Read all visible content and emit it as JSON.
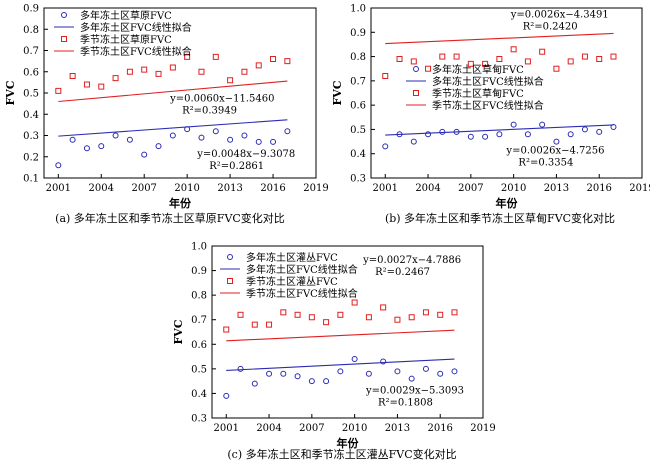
{
  "chart_data": [
    {
      "type": "scatter",
      "caption": "(a) 多年冻土区和季节冻土区草原FVC变化对比",
      "xlabel": "年份",
      "ylabel": "FVC",
      "xlim": [
        2000,
        2019
      ],
      "ylim": [
        0.1,
        0.9
      ],
      "xticks": [
        2001,
        2004,
        2007,
        2010,
        2013,
        2016,
        2019
      ],
      "yticks": [
        0.1,
        0.2,
        0.3,
        0.4,
        0.5,
        0.6,
        0.7,
        0.8,
        0.9
      ],
      "grid": false,
      "legend_position": "top-left",
      "series": [
        {
          "name": "多年冻土区草原FVC",
          "kind": "points",
          "marker": "circle",
          "color": "#2b2bb3",
          "x": [
            2001,
            2002,
            2003,
            2004,
            2005,
            2006,
            2007,
            2008,
            2009,
            2010,
            2011,
            2012,
            2013,
            2014,
            2015,
            2016,
            2017
          ],
          "y": [
            0.16,
            0.28,
            0.24,
            0.25,
            0.3,
            0.28,
            0.21,
            0.25,
            0.3,
            0.33,
            0.29,
            0.32,
            0.28,
            0.3,
            0.27,
            0.27,
            0.32
          ]
        },
        {
          "name": "多年冻土区FVC线性拟合",
          "kind": "line",
          "color": "#2b2bb3",
          "slope": 0.0048,
          "intercept": -9.3078,
          "x_range": [
            2001,
            2017
          ]
        },
        {
          "name": "季节冻土区草原FVC",
          "kind": "points",
          "marker": "square",
          "color": "#e02020",
          "x": [
            2001,
            2002,
            2003,
            2004,
            2005,
            2006,
            2007,
            2008,
            2009,
            2010,
            2011,
            2012,
            2013,
            2014,
            2015,
            2016,
            2017
          ],
          "y": [
            0.51,
            0.58,
            0.54,
            0.53,
            0.57,
            0.6,
            0.61,
            0.59,
            0.62,
            0.67,
            0.6,
            0.67,
            0.56,
            0.6,
            0.63,
            0.66,
            0.65
          ]
        },
        {
          "name": "季节冻土区FVC线性拟合",
          "kind": "line",
          "color": "#e02020",
          "slope": 0.006,
          "intercept": -11.546,
          "x_range": [
            2001,
            2017
          ]
        }
      ],
      "annotations": [
        {
          "eq": "y=0.0060x−11.5460",
          "r2": "R²=0.3949",
          "near": [
            2011.6,
            0.46
          ]
        },
        {
          "eq": "y=0.0048x−9.3078",
          "r2": "R²=0.2861",
          "near": [
            2013.5,
            0.2
          ]
        }
      ]
    },
    {
      "type": "scatter",
      "caption": "(b) 多年冻土区和季节冻土区草甸FVC变化对比",
      "xlabel": "年份",
      "ylabel": "FVC",
      "xlim": [
        2000,
        2019
      ],
      "ylim": [
        0.3,
        1.0
      ],
      "xticks": [
        2001,
        2004,
        2007,
        2010,
        2013,
        2016,
        2019
      ],
      "yticks": [
        0.3,
        0.4,
        0.5,
        0.6,
        0.7,
        0.8,
        0.9,
        1.0
      ],
      "grid": false,
      "legend_position": "center-right",
      "series": [
        {
          "name": "多年冻土区草甸FVC",
          "kind": "points",
          "marker": "circle",
          "color": "#2b2bb3",
          "x": [
            2001,
            2002,
            2003,
            2004,
            2005,
            2006,
            2007,
            2008,
            2009,
            2010,
            2011,
            2012,
            2013,
            2014,
            2015,
            2016,
            2017
          ],
          "y": [
            0.43,
            0.48,
            0.45,
            0.48,
            0.49,
            0.49,
            0.47,
            0.47,
            0.48,
            0.52,
            0.48,
            0.52,
            0.45,
            0.48,
            0.5,
            0.49,
            0.51
          ]
        },
        {
          "name": "多年冻土区FVC线性拟合",
          "kind": "line",
          "color": "#2b2bb3",
          "slope": 0.0026,
          "intercept": -4.7256,
          "x_range": [
            2001,
            2017
          ]
        },
        {
          "name": "季节冻土区草甸FVC",
          "kind": "points",
          "marker": "square",
          "color": "#e02020",
          "x": [
            2001,
            2002,
            2003,
            2004,
            2005,
            2006,
            2007,
            2008,
            2009,
            2010,
            2011,
            2012,
            2013,
            2014,
            2015,
            2016,
            2017
          ],
          "y": [
            0.72,
            0.79,
            0.78,
            0.75,
            0.8,
            0.8,
            0.77,
            0.77,
            0.79,
            0.83,
            0.78,
            0.82,
            0.75,
            0.78,
            0.8,
            0.79,
            0.8
          ]
        },
        {
          "name": "季节冻土区FVC线性拟合",
          "kind": "line",
          "color": "#e02020",
          "slope": 0.0026,
          "intercept": -4.3491,
          "x_range": [
            2001,
            2017
          ]
        }
      ],
      "annotations": [
        {
          "eq": "y=0.0026x−4.3491",
          "r2": "R²=0.2420",
          "near": [
            2012.6,
            0.96
          ]
        },
        {
          "eq": "y=0.0026x−4.7256",
          "r2": "R²=0.3354",
          "near": [
            2012.3,
            0.4
          ]
        }
      ]
    },
    {
      "type": "scatter",
      "caption": "(c) 多年冻土区和季节冻土区灌丛FVC变化对比",
      "xlabel": "年份",
      "ylabel": "FVC",
      "xlim": [
        2000,
        2019
      ],
      "ylim": [
        0.3,
        1.0
      ],
      "xticks": [
        2001,
        2004,
        2007,
        2010,
        2013,
        2016,
        2019
      ],
      "yticks": [
        0.3,
        0.4,
        0.5,
        0.6,
        0.7,
        0.8,
        0.9,
        1.0
      ],
      "grid": false,
      "legend_position": "top-left",
      "series": [
        {
          "name": "多年冻土区灌丛FVC",
          "kind": "points",
          "marker": "circle",
          "color": "#2b2bb3",
          "x": [
            2001,
            2002,
            2003,
            2004,
            2005,
            2006,
            2007,
            2008,
            2009,
            2010,
            2011,
            2012,
            2013,
            2014,
            2015,
            2016,
            2017
          ],
          "y": [
            0.39,
            0.5,
            0.44,
            0.48,
            0.48,
            0.47,
            0.45,
            0.45,
            0.49,
            0.54,
            0.48,
            0.53,
            0.49,
            0.46,
            0.5,
            0.48,
            0.49
          ]
        },
        {
          "name": "多年冻土区FVC线性拟合",
          "kind": "line",
          "color": "#2b2bb3",
          "slope": 0.0029,
          "intercept": -5.3093,
          "x_range": [
            2001,
            2017
          ]
        },
        {
          "name": "季节冻土区灌丛FVC",
          "kind": "points",
          "marker": "square",
          "color": "#e02020",
          "x": [
            2001,
            2002,
            2003,
            2004,
            2005,
            2006,
            2007,
            2008,
            2009,
            2010,
            2011,
            2012,
            2013,
            2014,
            2015,
            2016,
            2017
          ],
          "y": [
            0.66,
            0.72,
            0.68,
            0.68,
            0.73,
            0.72,
            0.71,
            0.69,
            0.72,
            0.77,
            0.71,
            0.75,
            0.7,
            0.71,
            0.73,
            0.72,
            0.73
          ]
        },
        {
          "name": "季节冻土区FVC线性拟合",
          "kind": "line",
          "color": "#e02020",
          "slope": 0.0027,
          "intercept": -4.7886,
          "x_range": [
            2001,
            2017
          ]
        }
      ],
      "annotations": [
        {
          "eq": "y=0.0027x−4.7886",
          "r2": "R²=0.2467",
          "near": [
            2013.4,
            0.93
          ]
        },
        {
          "eq": "y=0.0029x−5.3093",
          "r2": "R²=0.1808",
          "near": [
            2013.6,
            0.4
          ]
        }
      ]
    }
  ]
}
